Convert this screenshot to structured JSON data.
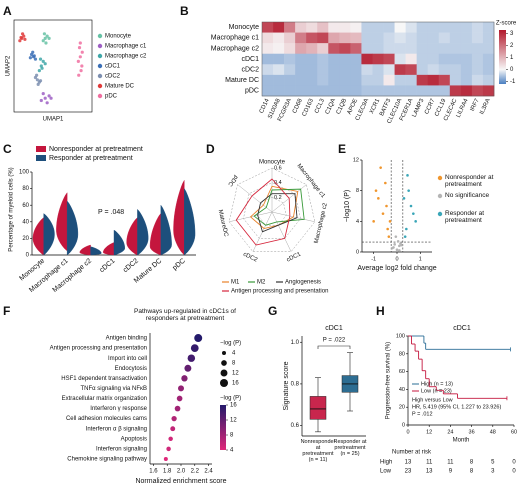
{
  "chart_data": [
    {
      "type": "scatter",
      "panel_label": "A",
      "xlabel": "UMAP1",
      "ylabel": "UMAP2",
      "xlim": [
        -10,
        10
      ],
      "ylim": [
        -10,
        10
      ],
      "series": [
        {
          "name": "Monocyte",
          "color": "#66c2a5",
          "x": [
            -2,
            -1.5,
            -2.5,
            -1,
            -2.2,
            -1.8
          ],
          "y": [
            6,
            6.5,
            5.5,
            6,
            7,
            5
          ]
        },
        {
          "name": "Macrophage c1",
          "color": "#9e5fc4",
          "x": [
            -2,
            -1,
            -3,
            -1.5,
            -2.5,
            -0.5
          ],
          "y": [
            -7,
            -6.5,
            -7.5,
            -8,
            -6,
            -7
          ]
        },
        {
          "name": "Macrophage c2",
          "color": "#3fa7a8",
          "x": [
            -3,
            -2.5,
            -3.5,
            -2,
            -3.2,
            -2.8
          ],
          "y": [
            0,
            1,
            -1,
            0.5,
            1.5,
            -0.5
          ]
        },
        {
          "name": "cDC1",
          "color": "#3b6fb6",
          "x": [
            -5,
            -5.5,
            -4.5,
            -5.2,
            -4.8,
            -5.8
          ],
          "y": [
            2,
            2.5,
            1.5,
            3,
            2.2,
            1.8
          ]
        },
        {
          "name": "cDC2",
          "color": "#7d8fb0",
          "x": [
            -4,
            -3.5,
            -4.5,
            -3.8,
            -4.2,
            -3.2
          ],
          "y": [
            -3,
            -3.5,
            -2.5,
            -4,
            -2,
            -3.2
          ]
        },
        {
          "name": "Mature DC",
          "color": "#e03b3b",
          "x": [
            -8,
            -7.5,
            -8.5,
            -7.8,
            -8.2,
            -7.2
          ],
          "y": [
            6,
            6.5,
            5.5,
            7,
            6.2,
            5.8
          ]
        },
        {
          "name": "pDC",
          "color": "#f06fa0",
          "x": [
            7,
            7.5,
            6.5,
            7.2,
            6.8,
            7.4,
            7,
            6.6
          ],
          "y": [
            5,
            3,
            1,
            -1,
            4,
            0,
            2,
            -2
          ]
        }
      ]
    },
    {
      "type": "heatmap",
      "panel_label": "B",
      "rows": [
        "Monocyte",
        "Macrophage c1",
        "Macrophage c2",
        "cDC1",
        "cDC2",
        "Mature DC",
        "pDC"
      ],
      "columns": [
        "CD14",
        "S100A8",
        "FCGR3A",
        "CD68",
        "CD163",
        "CCL3",
        "C1QA",
        "C1QB",
        "APOE",
        "CLEC9A",
        "XCR1",
        "BATF3",
        "CLEC10A",
        "FCER1A",
        "LAMP3",
        "CCR7",
        "CCL19",
        "CLEC4C",
        "LILRA4",
        "IRF7",
        "IL3RA"
      ],
      "values": [
        [
          2.6,
          3.0,
          1.8,
          0.6,
          0.4,
          0.8,
          0.2,
          0.2,
          0.1,
          -0.4,
          -0.4,
          -0.4,
          0.0,
          -0.2,
          -0.4,
          -0.4,
          -0.4,
          -0.4,
          -0.4,
          -0.3,
          -0.4
        ],
        [
          0.4,
          0.2,
          0.6,
          1.8,
          2.4,
          2.6,
          1.2,
          1.0,
          0.9,
          -0.4,
          -0.4,
          -0.3,
          -0.2,
          -0.3,
          -0.4,
          -0.4,
          -0.3,
          -0.4,
          -0.4,
          -0.3,
          -0.4
        ],
        [
          0.2,
          0.1,
          0.4,
          1.2,
          1.0,
          0.6,
          2.4,
          2.6,
          2.2,
          -0.4,
          -0.4,
          -0.3,
          -0.3,
          -0.3,
          -0.4,
          -0.4,
          -0.4,
          -0.4,
          -0.4,
          -0.4,
          -0.4
        ],
        [
          -0.6,
          -0.6,
          -0.5,
          -0.6,
          -0.6,
          -0.5,
          -0.6,
          -0.6,
          -0.6,
          3.0,
          2.8,
          2.6,
          -0.2,
          0.2,
          -0.4,
          -0.4,
          -0.5,
          -0.5,
          -0.5,
          -0.4,
          -0.5
        ],
        [
          -0.3,
          -0.2,
          -0.4,
          -0.6,
          -0.6,
          -0.5,
          -0.6,
          -0.6,
          -0.6,
          -0.3,
          -0.4,
          -0.2,
          2.8,
          2.6,
          -0.4,
          -0.3,
          -0.4,
          -0.4,
          -0.5,
          -0.4,
          -0.5
        ],
        [
          -0.6,
          -0.6,
          -0.6,
          -0.6,
          -0.6,
          -0.5,
          -0.6,
          -0.6,
          -0.6,
          -0.4,
          -0.4,
          0.2,
          -0.4,
          -0.4,
          2.8,
          3.0,
          2.6,
          -0.4,
          -0.5,
          -0.3,
          -0.4
        ],
        [
          -0.6,
          -0.6,
          -0.6,
          -0.6,
          -0.6,
          -0.6,
          -0.6,
          -0.6,
          -0.6,
          -0.5,
          -0.5,
          -0.5,
          -0.5,
          -0.5,
          -0.5,
          -0.5,
          -0.5,
          2.8,
          3.0,
          2.6,
          2.8
        ]
      ],
      "colors": [
        "#4a7fc1",
        "#f7f7f7",
        "#b2182b"
      ],
      "colorbar": {
        "title": "Z-score",
        "lim": [
          -1.2,
          3.3
        ],
        "ticks": [
          3,
          2,
          1,
          0,
          -1
        ]
      }
    },
    {
      "type": "split-violin",
      "panel_label": "C",
      "ylabel": "Percentage of myeloid cells (%)",
      "categories": [
        "Monocyte",
        "Macrophage c1",
        "Macrophage c2",
        "cDC1",
        "cDC2",
        "Mature DC",
        "pDC"
      ],
      "series": [
        {
          "name": "Nonresponder at pretreatment",
          "color": "#c4163d",
          "values": [
            20,
            30,
            3,
            3,
            15,
            10,
            30
          ],
          "min": [
            0,
            5,
            0,
            0,
            0,
            0,
            0
          ],
          "max": [
            45,
            75,
            12,
            15,
            45,
            50,
            90
          ]
        },
        {
          "name": "Responder at pretreatment",
          "color": "#1d4f7c",
          "values": [
            25,
            25,
            2,
            8,
            20,
            12,
            25
          ],
          "min": [
            0,
            0,
            0,
            0,
            0,
            0,
            0
          ],
          "max": [
            50,
            65,
            10,
            30,
            55,
            60,
            80
          ]
        }
      ],
      "ylim": [
        0,
        100
      ],
      "yticks": [
        0,
        20,
        40,
        60,
        80,
        100
      ],
      "annotation": "P = .048"
    },
    {
      "type": "radar",
      "panel_label": "D",
      "axes": [
        "Monocyte",
        "Macrophage c1",
        "Macrophage c2",
        "cDC1",
        "cDC2",
        "MatureDC",
        "pDC"
      ],
      "rlim": [
        0,
        0.6
      ],
      "rticks": [
        0.2,
        0.4,
        0.6
      ],
      "series": [
        {
          "name": "M1",
          "color": "#e8822a",
          "values": [
            0.35,
            0.45,
            0.3,
            0.2,
            0.25,
            0.3,
            0.15
          ]
        },
        {
          "name": "M2",
          "color": "#3a9a3a",
          "values": [
            0.3,
            0.5,
            0.45,
            0.15,
            0.2,
            0.25,
            0.1
          ]
        },
        {
          "name": "Angiogenesis",
          "color": "#333333",
          "values": [
            0.25,
            0.4,
            0.35,
            0.2,
            0.3,
            0.2,
            0.2
          ]
        },
        {
          "name": "Antigen processing and presentation",
          "color": "#d6263c",
          "values": [
            0.45,
            0.3,
            0.25,
            0.4,
            0.5,
            0.5,
            0.35
          ]
        }
      ]
    },
    {
      "type": "volcano",
      "panel_label": "E",
      "xlabel": "Average log2 fold change",
      "ylabel": "−log10 (P)",
      "xlim": [
        -1.5,
        1.5
      ],
      "xticks": [
        -1,
        0,
        1
      ],
      "ylim": [
        0,
        12
      ],
      "yticks": [
        0,
        4,
        8,
        12
      ],
      "vlines": [
        -0.25,
        0.25
      ],
      "hline": 1.3,
      "series": [
        {
          "name": "Nonresponder at pretreatment",
          "color": "#f0962e",
          "x": [
            -0.4,
            -0.6,
            -0.8,
            -0.5,
            -1.0,
            -0.35,
            -0.7,
            -0.45,
            -0.9,
            -0.3
          ],
          "y": [
            3,
            5,
            7,
            9,
            4,
            2,
            11,
            6,
            8,
            4
          ]
        },
        {
          "name": "No significance",
          "color": "#b5b5b5",
          "x": [
            -0.2,
            -0.1,
            0,
            0.1,
            0.15,
            -0.15,
            0.05,
            -0.05,
            0.2,
            0.1
          ],
          "y": [
            0.5,
            1,
            0.3,
            0.8,
            1.1,
            0.6,
            1.4,
            2,
            0.9,
            0.2
          ]
        },
        {
          "name": "Responder at pretreatment",
          "color": "#3aa6b8",
          "x": [
            0.4,
            0.6,
            0.5,
            0.8,
            0.35,
            0.7,
            0.45,
            0.3
          ],
          "y": [
            3,
            6,
            8,
            4,
            2,
            5,
            10,
            7
          ]
        }
      ]
    },
    {
      "type": "dot",
      "panel_label": "F",
      "title": "Pathways up-regulated in cDC1s of responders at pretreatment",
      "xlabel": "Normalized enrichment score",
      "categories": [
        "Antigen binding",
        "Antigen processing and presentation",
        "Import into cell",
        "Endocytosis",
        "HSF1 dependent transactivation",
        "TNFα signaling via NFκB",
        "Extracellular matrix organization",
        "Interferon γ response",
        "Cell adhesion molecules cams",
        "Interferon α β signaling",
        "Apoptosis",
        "Interferon signaling",
        "Chemokine signaling pathway"
      ],
      "values": [
        2.25,
        2.2,
        2.15,
        2.1,
        2.05,
        2.0,
        1.98,
        1.95,
        1.9,
        1.88,
        1.85,
        1.82,
        1.78
      ],
      "sizes": [
        16,
        15,
        14,
        12,
        10,
        9,
        8,
        8,
        7,
        6,
        5,
        5,
        4
      ],
      "xlim": [
        1.55,
        2.45
      ],
      "xticks": [
        1.6,
        1.8,
        {
          "value": 2,
          "label": "2.0"
        },
        2.2,
        2.4
      ],
      "colors": [
        "#e0287a",
        "#241a6b"
      ],
      "size_legend": {
        "title": "−log (P)",
        "values": [
          4,
          8,
          12,
          16
        ]
      },
      "color_legend": {
        "title": "−log (P)",
        "ticks": [
          16,
          12,
          8,
          4
        ],
        "lim": [
          4,
          16
        ]
      }
    },
    {
      "type": "box",
      "panel_label": "G",
      "title": "cDC1",
      "ylabel": "Signature score",
      "categories": [
        "Nonresponder at pretreatment (n = 11)",
        "Responder at pretreatment (n = 25)"
      ],
      "colors": [
        "#c8264d",
        "#2d6d92"
      ],
      "boxes": [
        {
          "min": 0.57,
          "q1": 0.63,
          "median": 0.68,
          "q3": 0.74,
          "max": 0.83
        },
        {
          "min": 0.67,
          "q1": 0.76,
          "median": 0.8,
          "q3": 0.84,
          "max": 0.95
        }
      ],
      "ylim": [
        0.55,
        1.03
      ],
      "yticks": [
        0.6,
        0.8,
        {
          "value": 1,
          "label": "1.0"
        }
      ],
      "annotation": "P = .022"
    },
    {
      "type": "km",
      "panel_label": "H",
      "title": "cDC1",
      "xlabel": "Month",
      "ylabel": "Progression-free survival (%)",
      "xlim": [
        0,
        60
      ],
      "xticks": [
        0,
        12,
        24,
        36,
        48,
        60
      ],
      "ylim": [
        0,
        100
      ],
      "yticks": [
        0,
        20,
        40,
        60,
        80,
        100
      ],
      "series": [
        {
          "name": "High (n = 13)",
          "color": "#2a6d96",
          "x": [
            0,
            9,
            10,
            58
          ],
          "y": [
            100,
            92,
            85,
            85
          ]
        },
        {
          "name": "Low (n = 23)",
          "color": "#c4163d",
          "x": [
            0,
            2,
            4,
            6,
            8,
            10,
            12,
            16,
            20,
            28,
            56
          ],
          "y": [
            100,
            91,
            83,
            74,
            61,
            52,
            43,
            39,
            35,
            30,
            30
          ]
        }
      ],
      "annotations": [
        "High versus Low",
        "HR, 5.419 (95% CI, 1.227 to 23.926)",
        "P = .012"
      ],
      "risk_table": {
        "title": "Number at risk",
        "rows": [
          {
            "name": "High",
            "values": [
              13,
              11,
              11,
              8,
              5,
              0
            ]
          },
          {
            "name": "Low",
            "values": [
              23,
              13,
              9,
              8,
              3,
              0
            ]
          }
        ]
      }
    }
  ]
}
